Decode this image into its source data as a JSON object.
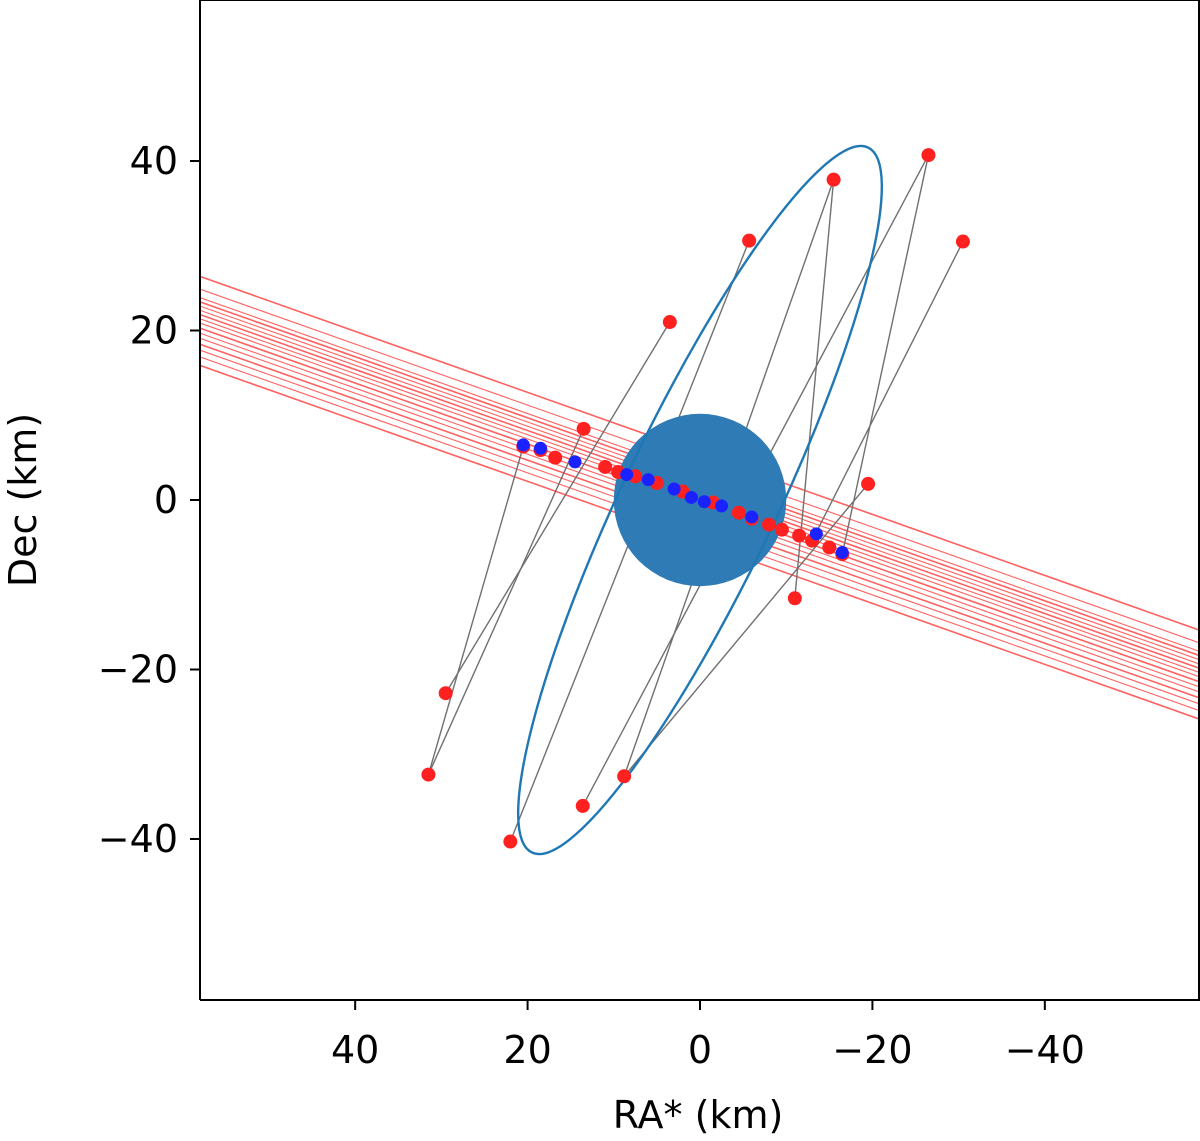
{
  "chart_data": {
    "type": "scatter",
    "title": "",
    "xlabel": "RA* (km)",
    "ylabel": "Dec (km)",
    "xlim": [
      58,
      -58
    ],
    "ylim": [
      -59,
      59
    ],
    "x_inverted": true,
    "xticks": [
      40,
      20,
      0,
      -20,
      -40
    ],
    "yticks": [
      40,
      20,
      0,
      -20,
      -40
    ],
    "xtick_labels": [
      "40",
      "20",
      "0",
      "−20",
      "−40"
    ],
    "ytick_labels": [
      "40",
      "20",
      "0",
      "−20",
      "−40"
    ],
    "grid": false,
    "legend": "none",
    "colors": {
      "ellipse": "#1f77b4",
      "body": "#2e7bb6",
      "chord": "#ff3a3a",
      "point_red": "#ff2020",
      "point_blue": "#1a22ff",
      "connector": "#707070",
      "axes": "#000000"
    },
    "body_disk": {
      "center": [
        0,
        0
      ],
      "radius": 10
    },
    "fitted_ellipse": {
      "center": [
        0,
        0
      ],
      "semi_major": 45.3,
      "semi_minor": 8.9,
      "tilt_deg": 64.5
    },
    "chord_lines": [
      {
        "offset": -5.0
      },
      {
        "offset": -4.0
      },
      {
        "offset": -3.2
      },
      {
        "offset": -2.5
      },
      {
        "offset": -1.8
      },
      {
        "offset": -1.2
      },
      {
        "offset": -0.6
      },
      {
        "offset": 0.0
      },
      {
        "offset": 0.5
      },
      {
        "offset": 1.0
      },
      {
        "offset": 1.5
      },
      {
        "offset": 2.0
      },
      {
        "offset": 2.5
      },
      {
        "offset": 3.0
      },
      {
        "offset": 4.0
      },
      {
        "offset": 5.5
      }
    ],
    "red_points": [
      [
        -26.5,
        40.7
      ],
      [
        -15.5,
        37.8
      ],
      [
        -30.5,
        30.5
      ],
      [
        -5.7,
        30.6
      ],
      [
        3.5,
        21.0
      ],
      [
        13.5,
        8.4
      ],
      [
        -19.5,
        1.9
      ],
      [
        -11.0,
        -11.6
      ],
      [
        29.5,
        -22.8
      ],
      [
        31.5,
        -32.4
      ],
      [
        8.8,
        -32.6
      ],
      [
        13.6,
        -36.1
      ],
      [
        22.0,
        -40.3
      ],
      [
        -13.0,
        -4.8
      ],
      [
        -16.5,
        -6.4
      ],
      [
        20.5,
        6.3
      ],
      [
        16.8,
        5.0
      ],
      [
        9.5,
        3.3
      ],
      [
        5.0,
        2.0
      ],
      [
        2.0,
        1.0
      ],
      [
        -1.5,
        -0.3
      ],
      [
        -4.5,
        -1.5
      ],
      [
        -8.0,
        -2.9
      ],
      [
        -11.5,
        -4.2
      ],
      [
        -15.0,
        -5.6
      ],
      [
        18.5,
        5.9
      ],
      [
        11.0,
        3.9
      ],
      [
        7.5,
        2.8
      ],
      [
        -6.0,
        -2.2
      ],
      [
        -9.5,
        -3.5
      ]
    ],
    "blue_points": [
      [
        20.5,
        6.5
      ],
      [
        18.5,
        6.1
      ],
      [
        14.5,
        4.5
      ],
      [
        8.5,
        3.0
      ],
      [
        6.0,
        2.4
      ],
      [
        3.0,
        1.3
      ],
      [
        1.0,
        0.3
      ],
      [
        -0.5,
        -0.2
      ],
      [
        -2.5,
        -0.7
      ],
      [
        -6.0,
        -2.0
      ],
      [
        -13.5,
        -4.0
      ],
      [
        -16.5,
        -6.2
      ]
    ],
    "connectors": [
      {
        "from": [
          -26.5,
          40.7
        ],
        "to": [
          -16.5,
          -6.4
        ]
      },
      {
        "from": [
          -15.5,
          37.8
        ],
        "to": [
          -11.0,
          -11.6
        ]
      },
      {
        "from": [
          -30.5,
          30.5
        ],
        "to": [
          -13.0,
          -4.8
        ]
      },
      {
        "from": [
          -5.7,
          30.6
        ],
        "to": [
          22.0,
          -40.3
        ]
      },
      {
        "from": [
          3.5,
          21.0
        ],
        "to": [
          29.5,
          -22.8
        ]
      },
      {
        "from": [
          13.5,
          8.4
        ],
        "to": [
          31.5,
          -32.4
        ]
      },
      {
        "from": [
          -19.5,
          1.9
        ],
        "to": [
          8.8,
          -32.6
        ]
      },
      {
        "from": [
          -26.5,
          40.7
        ],
        "to": [
          13.6,
          -36.1
        ]
      },
      {
        "from": [
          20.5,
          6.3
        ],
        "to": [
          31.5,
          -32.4
        ]
      },
      {
        "from": [
          -15.5,
          37.8
        ],
        "to": [
          8.8,
          -32.6
        ]
      }
    ]
  }
}
